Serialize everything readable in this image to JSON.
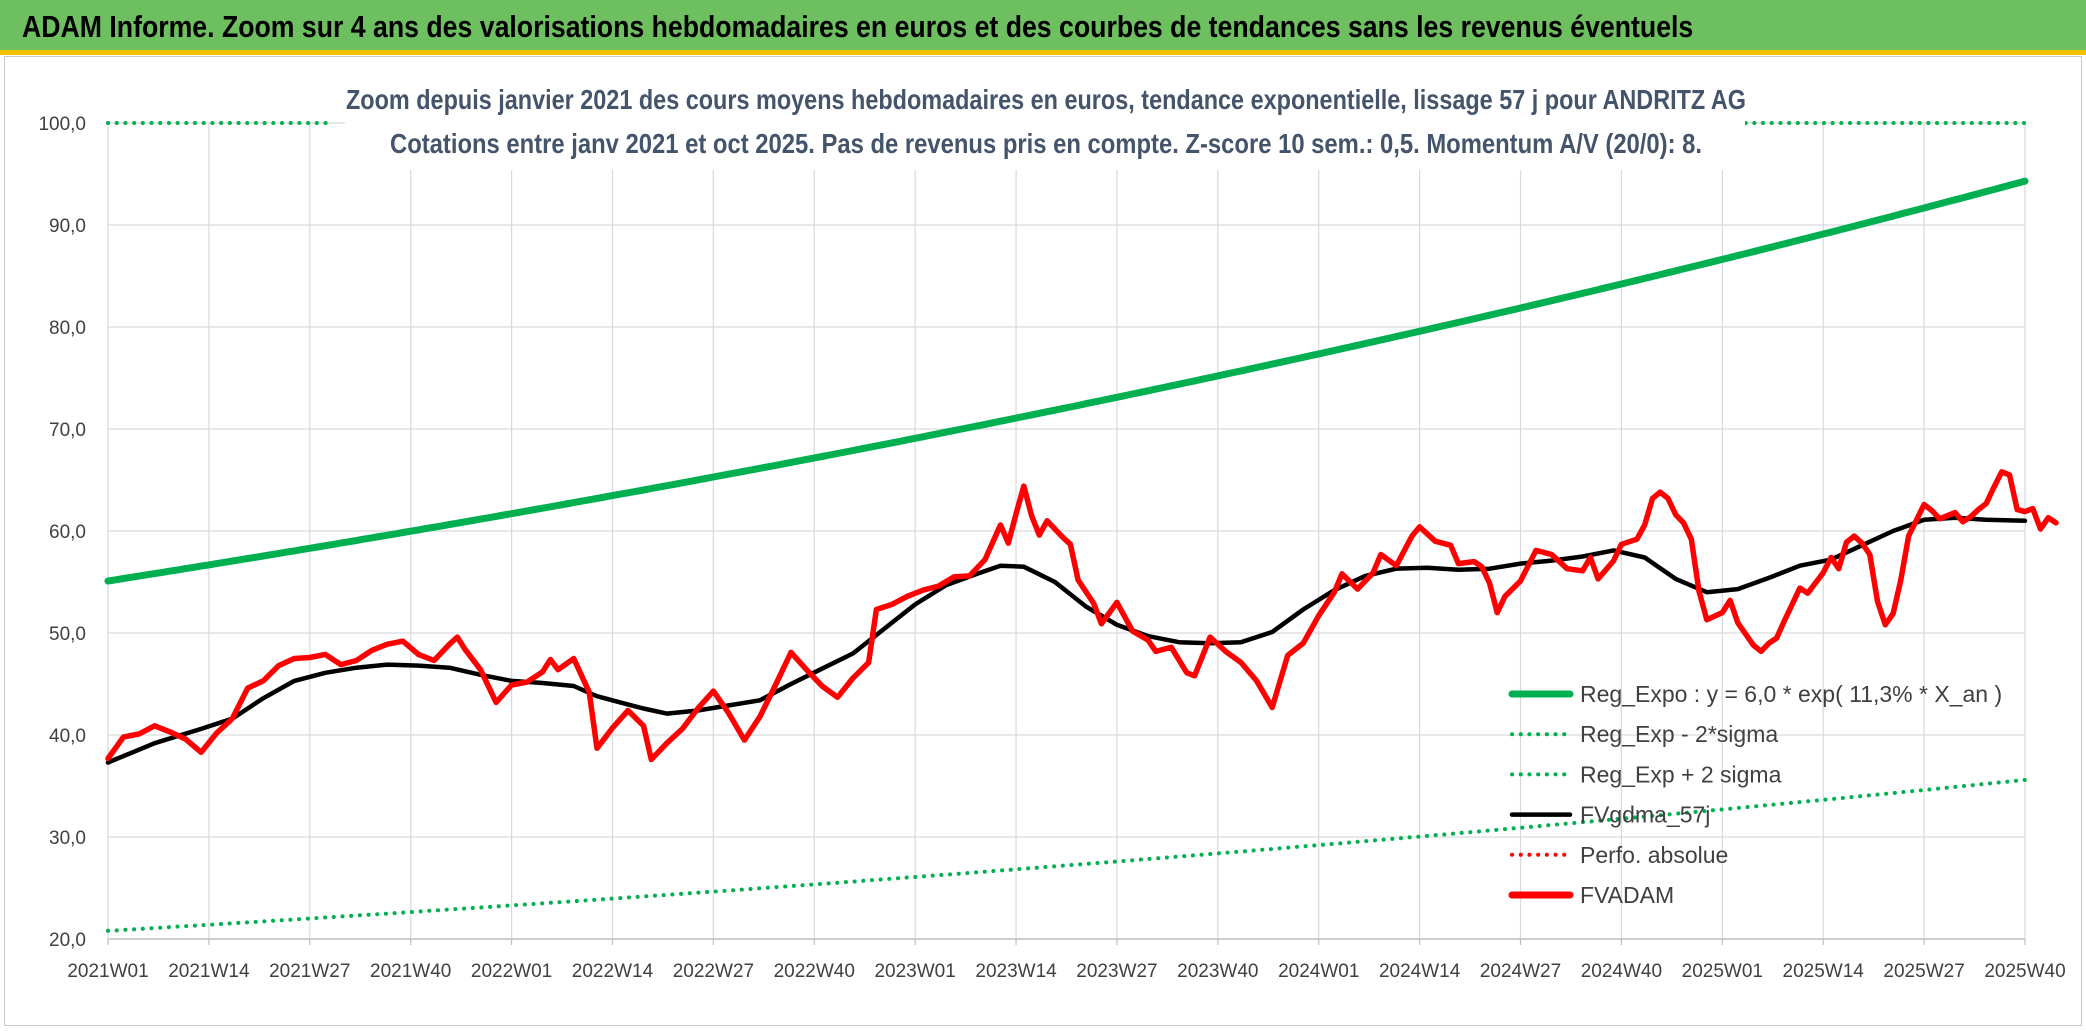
{
  "page": {
    "banner_title": "ADAM Informe. Zoom sur 4 ans des valorisations hebdomadaires en euros et des courbes de tendances sans les revenus éventuels"
  },
  "colors": {
    "banner_bg": "#6dbf5f",
    "banner_stripe": "#f2c200",
    "reg_expo": "#00b050",
    "fvadam": "#ff0000",
    "fvgdma": "#000000",
    "perfo": "#ff0000",
    "grid": "#d9d9d9",
    "title_text": "#44546a"
  },
  "chart_data": {
    "type": "line",
    "title": "Zoom depuis janvier 2021 des cours moyens hebdomadaires en euros, tendance exponentielle, lissage 57 j pour ANDRITZ AG",
    "subtitle": "Cotations entre janv 2021 et oct 2025. Pas de revenus pris en compte. Z-score 10 sem.: 0,5. Momentum A/V (20/0): 8.",
    "xlabel": "",
    "ylabel": "",
    "ylim": [
      20,
      100
    ],
    "y_ticks": [
      "20,0",
      "30,0",
      "40,0",
      "50,0",
      "60,0",
      "70,0",
      "80,0",
      "90,0",
      "100,0"
    ],
    "x_weeks": 248,
    "x_ticks": [
      {
        "week": 0,
        "label": "2021W01"
      },
      {
        "week": 13,
        "label": "2021W14"
      },
      {
        "week": 26,
        "label": "2021W27"
      },
      {
        "week": 39,
        "label": "2021W40"
      },
      {
        "week": 52,
        "label": "2022W01"
      },
      {
        "week": 65,
        "label": "2022W14"
      },
      {
        "week": 78,
        "label": "2022W27"
      },
      {
        "week": 91,
        "label": "2022W40"
      },
      {
        "week": 104,
        "label": "2023W01"
      },
      {
        "week": 117,
        "label": "2023W14"
      },
      {
        "week": 130,
        "label": "2023W27"
      },
      {
        "week": 143,
        "label": "2023W40"
      },
      {
        "week": 156,
        "label": "2024W01"
      },
      {
        "week": 169,
        "label": "2024W14"
      },
      {
        "week": 182,
        "label": "2024W27"
      },
      {
        "week": 195,
        "label": "2024W40"
      },
      {
        "week": 208,
        "label": "2025W01"
      },
      {
        "week": 221,
        "label": "2025W14"
      },
      {
        "week": 234,
        "label": "2025W27"
      },
      {
        "week": 247,
        "label": "2025W40"
      }
    ],
    "legend_position": "bottom-right",
    "series": [
      {
        "name": "Reg_Expo : y = 6,0 * exp( 11,3% *  X_an )",
        "style": "solid-thick",
        "color": "#00b050",
        "exp_start": 55.1,
        "exp_end": 94.3,
        "points": [
          [
            0,
            55.1
          ],
          [
            52,
            61.5
          ],
          [
            104,
            68.8
          ],
          [
            156,
            77.1
          ],
          [
            208,
            86.3
          ],
          [
            247,
            94.3
          ]
        ]
      },
      {
        "name": "Reg_Exp - 2*sigma",
        "style": "dotted",
        "color": "#00b050",
        "exp_start": 20.8,
        "exp_end": 35.6,
        "points": [
          [
            0,
            20.8
          ],
          [
            52,
            23.3
          ],
          [
            104,
            26.0
          ],
          [
            156,
            29.1
          ],
          [
            208,
            32.6
          ],
          [
            247,
            35.6
          ]
        ]
      },
      {
        "name": "Reg_Exp + 2 sigma",
        "style": "dotted",
        "color": "#00b050",
        "points": [
          [
            0,
            100.0
          ],
          [
            29,
            100.0
          ],
          [
            211,
            100.0
          ],
          [
            247,
            100.0
          ]
        ],
        "gaps": [
          [
            29,
            211
          ]
        ]
      },
      {
        "name": "FVgdma_57j",
        "style": "solid",
        "color": "#000000",
        "points": [
          [
            0,
            37.3
          ],
          [
            6,
            39.2
          ],
          [
            12,
            40.6
          ],
          [
            16,
            41.6
          ],
          [
            20,
            43.6
          ],
          [
            24,
            45.3
          ],
          [
            28,
            46.1
          ],
          [
            32,
            46.6
          ],
          [
            36,
            46.9
          ],
          [
            40,
            46.8
          ],
          [
            44,
            46.6
          ],
          [
            48,
            45.9
          ],
          [
            52,
            45.3
          ],
          [
            56,
            45.1
          ],
          [
            60,
            44.8
          ],
          [
            63,
            43.8
          ],
          [
            66,
            43.2
          ],
          [
            69,
            42.6
          ],
          [
            72,
            42.1
          ],
          [
            76,
            42.4
          ],
          [
            80,
            42.9
          ],
          [
            84,
            43.4
          ],
          [
            88,
            45.0
          ],
          [
            92,
            46.5
          ],
          [
            96,
            48.0
          ],
          [
            100,
            50.4
          ],
          [
            104,
            52.8
          ],
          [
            108,
            54.7
          ],
          [
            112,
            55.8
          ],
          [
            115,
            56.6
          ],
          [
            118,
            56.5
          ],
          [
            122,
            55.0
          ],
          [
            126,
            52.6
          ],
          [
            130,
            50.8
          ],
          [
            134,
            49.7
          ],
          [
            138,
            49.1
          ],
          [
            142,
            49.0
          ],
          [
            146,
            49.1
          ],
          [
            150,
            50.1
          ],
          [
            154,
            52.3
          ],
          [
            158,
            54.2
          ],
          [
            162,
            55.6
          ],
          [
            166,
            56.3
          ],
          [
            170,
            56.4
          ],
          [
            174,
            56.2
          ],
          [
            178,
            56.3
          ],
          [
            182,
            56.8
          ],
          [
            186,
            57.1
          ],
          [
            190,
            57.5
          ],
          [
            194,
            58.1
          ],
          [
            198,
            57.4
          ],
          [
            202,
            55.3
          ],
          [
            206,
            54.0
          ],
          [
            210,
            54.3
          ],
          [
            214,
            55.4
          ],
          [
            218,
            56.6
          ],
          [
            222,
            57.2
          ],
          [
            226,
            58.6
          ],
          [
            230,
            60.0
          ],
          [
            234,
            61.1
          ],
          [
            238,
            61.3
          ],
          [
            242,
            61.1
          ],
          [
            247,
            61.0
          ]
        ]
      },
      {
        "name": "Perfo. absolue",
        "style": "dotted",
        "color": "#ff0000",
        "points": []
      },
      {
        "name": "FVADAM",
        "style": "solid-thick",
        "color": "#ff0000",
        "points": [
          [
            0,
            37.7
          ],
          [
            2,
            39.8
          ],
          [
            4,
            40.1
          ],
          [
            6,
            40.9
          ],
          [
            8,
            40.3
          ],
          [
            10,
            39.6
          ],
          [
            12,
            38.3
          ],
          [
            14,
            40.2
          ],
          [
            16,
            41.6
          ],
          [
            18,
            44.6
          ],
          [
            20,
            45.3
          ],
          [
            22,
            46.8
          ],
          [
            24,
            47.5
          ],
          [
            26,
            47.6
          ],
          [
            28,
            47.9
          ],
          [
            30,
            46.9
          ],
          [
            32,
            47.3
          ],
          [
            34,
            48.3
          ],
          [
            36,
            48.9
          ],
          [
            38,
            49.2
          ],
          [
            40,
            47.9
          ],
          [
            42,
            47.3
          ],
          [
            44,
            48.9
          ],
          [
            45,
            49.6
          ],
          [
            46,
            48.4
          ],
          [
            48,
            46.4
          ],
          [
            50,
            43.2
          ],
          [
            52,
            44.9
          ],
          [
            54,
            45.2
          ],
          [
            56,
            46.2
          ],
          [
            57,
            47.4
          ],
          [
            58,
            46.4
          ],
          [
            60,
            47.5
          ],
          [
            62,
            44.2
          ],
          [
            63,
            38.7
          ],
          [
            65,
            40.7
          ],
          [
            67,
            42.4
          ],
          [
            69,
            40.9
          ],
          [
            70,
            37.6
          ],
          [
            72,
            39.2
          ],
          [
            74,
            40.6
          ],
          [
            76,
            42.6
          ],
          [
            78,
            44.3
          ],
          [
            80,
            42.1
          ],
          [
            82,
            39.5
          ],
          [
            84,
            41.8
          ],
          [
            86,
            44.9
          ],
          [
            88,
            48.1
          ],
          [
            90,
            46.4
          ],
          [
            92,
            44.8
          ],
          [
            94,
            43.7
          ],
          [
            96,
            45.6
          ],
          [
            98,
            47.1
          ],
          [
            99,
            52.3
          ],
          [
            101,
            52.8
          ],
          [
            103,
            53.6
          ],
          [
            105,
            54.2
          ],
          [
            107,
            54.6
          ],
          [
            109,
            55.5
          ],
          [
            111,
            55.6
          ],
          [
            113,
            57.2
          ],
          [
            115,
            60.6
          ],
          [
            116,
            58.8
          ],
          [
            117,
            61.7
          ],
          [
            118,
            64.4
          ],
          [
            119,
            61.5
          ],
          [
            120,
            59.6
          ],
          [
            121,
            61.0
          ],
          [
            123,
            59.4
          ],
          [
            124,
            58.7
          ],
          [
            125,
            55.2
          ],
          [
            127,
            52.9
          ],
          [
            128,
            50.9
          ],
          [
            130,
            53.0
          ],
          [
            132,
            50.2
          ],
          [
            134,
            49.3
          ],
          [
            135,
            48.2
          ],
          [
            137,
            48.6
          ],
          [
            139,
            46.1
          ],
          [
            140,
            45.8
          ],
          [
            142,
            49.6
          ],
          [
            144,
            48.2
          ],
          [
            146,
            47.1
          ],
          [
            148,
            45.3
          ],
          [
            150,
            42.7
          ],
          [
            152,
            47.8
          ],
          [
            154,
            49.0
          ],
          [
            156,
            51.7
          ],
          [
            158,
            54.0
          ],
          [
            159,
            55.8
          ],
          [
            161,
            54.3
          ],
          [
            163,
            55.9
          ],
          [
            164,
            57.7
          ],
          [
            166,
            56.6
          ],
          [
            168,
            59.5
          ],
          [
            169,
            60.4
          ],
          [
            171,
            59.0
          ],
          [
            173,
            58.6
          ],
          [
            174,
            56.8
          ],
          [
            176,
            57.0
          ],
          [
            177,
            56.5
          ],
          [
            178,
            54.9
          ],
          [
            179,
            52.0
          ],
          [
            180,
            53.6
          ],
          [
            182,
            55.1
          ],
          [
            184,
            58.1
          ],
          [
            186,
            57.7
          ],
          [
            188,
            56.3
          ],
          [
            190,
            56.1
          ],
          [
            191,
            57.4
          ],
          [
            192,
            55.3
          ],
          [
            194,
            57.1
          ],
          [
            195,
            58.7
          ],
          [
            197,
            59.2
          ],
          [
            198,
            60.6
          ],
          [
            199,
            63.2
          ],
          [
            200,
            63.8
          ],
          [
            201,
            63.2
          ],
          [
            202,
            61.6
          ],
          [
            203,
            60.8
          ],
          [
            204,
            59.2
          ],
          [
            205,
            54.1
          ],
          [
            206,
            51.3
          ],
          [
            208,
            52.0
          ],
          [
            209,
            53.2
          ],
          [
            210,
            51.0
          ],
          [
            212,
            48.8
          ],
          [
            213,
            48.2
          ],
          [
            214,
            49.0
          ],
          [
            215,
            49.5
          ],
          [
            216,
            51.2
          ],
          [
            218,
            54.4
          ],
          [
            219,
            53.9
          ],
          [
            221,
            55.9
          ],
          [
            222,
            57.4
          ],
          [
            223,
            56.3
          ],
          [
            224,
            58.9
          ],
          [
            225,
            59.5
          ],
          [
            226,
            58.8
          ],
          [
            227,
            57.7
          ],
          [
            228,
            53.1
          ],
          [
            229,
            50.8
          ],
          [
            230,
            51.9
          ],
          [
            231,
            55.2
          ],
          [
            232,
            59.5
          ],
          [
            234,
            62.6
          ],
          [
            235,
            62.0
          ],
          [
            236,
            61.2
          ],
          [
            238,
            61.8
          ],
          [
            239,
            60.9
          ],
          [
            240,
            61.4
          ],
          [
            241,
            62.1
          ],
          [
            242,
            62.7
          ],
          [
            243,
            64.3
          ],
          [
            244,
            65.8
          ],
          [
            245,
            65.5
          ],
          [
            246,
            62.1
          ],
          [
            247,
            61.9
          ],
          [
            248,
            62.2
          ],
          [
            249,
            60.2
          ],
          [
            250,
            61.3
          ],
          [
            251,
            60.8
          ]
        ]
      }
    ]
  }
}
